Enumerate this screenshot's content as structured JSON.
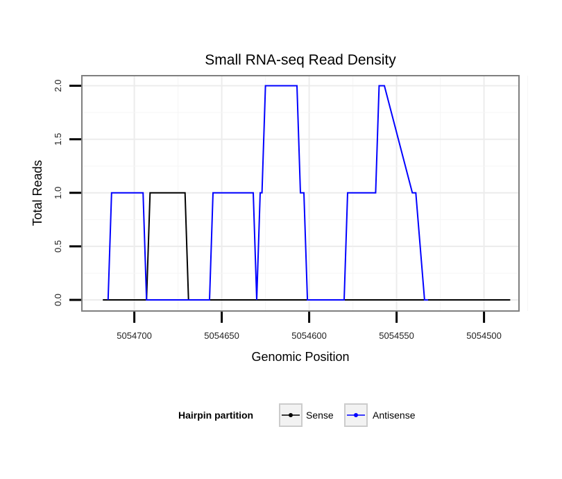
{
  "chart_data": {
    "type": "line",
    "title": "Small RNA-seq Read Density",
    "xlabel": "Genomic Position",
    "ylabel": "Total Reads",
    "xlim": [
      5054730,
      5054480
    ],
    "x_reversed": true,
    "ylim": [
      0,
      2.1
    ],
    "x_ticks": [
      5054700,
      5054650,
      5054600,
      5054550,
      5054500
    ],
    "x_tick_labels": [
      "5054700",
      "5054650",
      "5054600",
      "5054550",
      "5054500"
    ],
    "y_ticks": [
      0,
      0.5,
      1,
      1.5,
      2
    ],
    "y_tick_labels": [
      "0.0",
      "0.5",
      "1.0",
      "1.5",
      "2.0"
    ],
    "grid": true,
    "legend": {
      "title": "Hairpin partition",
      "position": "bottom",
      "entries": [
        {
          "name": "Sense",
          "color": "#000000"
        },
        {
          "name": "Antisense",
          "color": "#0000FF"
        }
      ]
    },
    "series": [
      {
        "name": "Sense",
        "color": "#000000",
        "x": [
          5054718,
          5054693,
          5054691,
          5054671,
          5054669,
          5054485
        ],
        "y": [
          0,
          0,
          1,
          1,
          0,
          0
        ]
      },
      {
        "name": "Antisense",
        "color": "#0000FF",
        "x": [
          5054715,
          5054713,
          5054695,
          5054693,
          5054657,
          5054655,
          5054632,
          5054630,
          5054628,
          5054627,
          5054625,
          5054607,
          5054605,
          5054603,
          5054601,
          5054580,
          5054578,
          5054562,
          5054560,
          5054557,
          5054541,
          5054539,
          5054534,
          5054532
        ],
        "y": [
          0,
          1,
          1,
          0,
          0,
          1,
          1,
          0,
          1,
          1,
          2,
          2,
          1,
          1,
          0,
          0,
          1,
          1,
          2,
          2,
          1,
          1,
          0,
          0
        ]
      }
    ]
  }
}
